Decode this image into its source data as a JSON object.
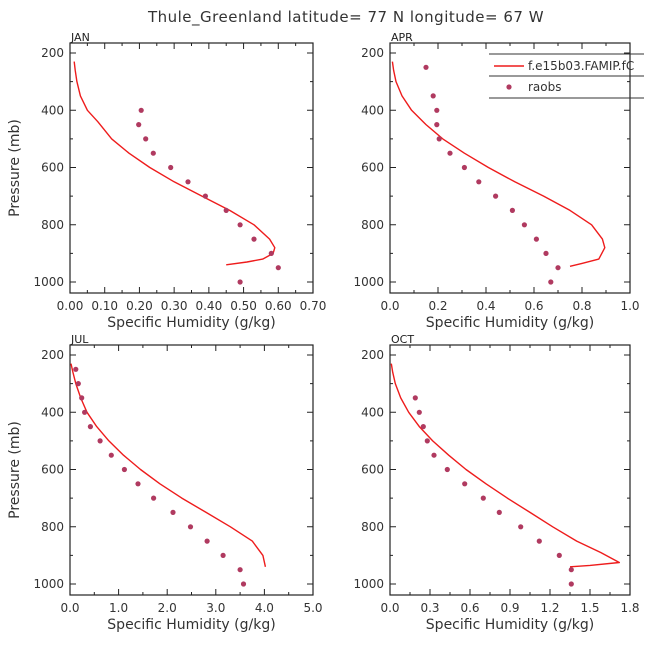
{
  "figure": {
    "title": "Thule_Greenland   latitude= 77 N longitude= 67 W"
  },
  "legend": {
    "model_label": "f.e15b03.FAMIP.fC",
    "obs_label": "raobs",
    "model_color": "#ee1c1c",
    "obs_color": "#b03a60"
  },
  "chart_data": [
    {
      "type": "line",
      "title": "JAN",
      "xlabel": "Specific Humidity (g/kg)",
      "ylabel": "Pressure (mb)",
      "xlim": [
        0.0,
        0.7
      ],
      "ylim": [
        1025,
        200
      ],
      "xticks": [
        "0.00",
        "0.10",
        "0.20",
        "0.30",
        "0.40",
        "0.50",
        "0.60",
        "0.70"
      ],
      "yticks": [
        "200",
        "400",
        "600",
        "800",
        "1000"
      ],
      "series": [
        {
          "x": [
            0.012,
            0.015,
            0.02,
            0.03,
            0.05,
            0.08,
            0.12,
            0.17,
            0.23,
            0.3,
            0.38,
            0.46,
            0.53,
            0.575,
            0.59,
            0.585,
            0.555,
            0.51,
            0.45
          ],
          "y": [
            230,
            260,
            300,
            350,
            400,
            440,
            500,
            550,
            600,
            650,
            700,
            750,
            800,
            850,
            880,
            900,
            920,
            930,
            940
          ]
        },
        {
          "x": [
            0.205,
            0.198,
            0.218,
            0.24,
            0.29,
            0.34,
            0.39,
            0.45,
            0.49,
            0.53,
            0.58,
            0.6,
            0.49
          ],
          "y": [
            400,
            450,
            500,
            550,
            600,
            650,
            700,
            750,
            800,
            850,
            900,
            950,
            1000
          ]
        }
      ]
    },
    {
      "type": "line",
      "title": "APR",
      "xlabel": "Specific Humidity (g/kg)",
      "ylabel": "Pressure (mb)",
      "xlim": [
        0.0,
        1.0
      ],
      "ylim": [
        1025,
        200
      ],
      "xticks": [
        "0.0",
        "0.2",
        "0.4",
        "0.6",
        "0.8",
        "1.0"
      ],
      "yticks": [
        "200",
        "400",
        "600",
        "800",
        "1000"
      ],
      "series": [
        {
          "x": [
            0.01,
            0.015,
            0.025,
            0.05,
            0.09,
            0.15,
            0.22,
            0.31,
            0.41,
            0.52,
            0.64,
            0.75,
            0.84,
            0.885,
            0.895,
            0.87,
            0.8,
            0.75
          ],
          "y": [
            230,
            260,
            300,
            350,
            400,
            450,
            500,
            550,
            600,
            650,
            700,
            750,
            800,
            850,
            880,
            920,
            935,
            945
          ]
        },
        {
          "x": [
            0.15,
            0.18,
            0.195,
            0.195,
            0.205,
            0.25,
            0.31,
            0.37,
            0.44,
            0.51,
            0.56,
            0.61,
            0.65,
            0.7,
            0.67
          ],
          "y": [
            250,
            350,
            400,
            450,
            500,
            550,
            600,
            650,
            700,
            750,
            800,
            850,
            900,
            950,
            1000
          ]
        }
      ]
    },
    {
      "type": "line",
      "title": "JUL",
      "xlabel": "Specific Humidity (g/kg)",
      "ylabel": "Pressure (mb)",
      "xlim": [
        0.0,
        5.0
      ],
      "ylim": [
        1025,
        200
      ],
      "xticks": [
        "0.0",
        "1.0",
        "2.0",
        "3.0",
        "4.0",
        "5.0"
      ],
      "yticks": [
        "200",
        "400",
        "600",
        "800",
        "1000"
      ],
      "series": [
        {
          "x": [
            0.02,
            0.06,
            0.12,
            0.22,
            0.35,
            0.55,
            0.8,
            1.1,
            1.45,
            1.85,
            2.3,
            2.8,
            3.3,
            3.75,
            3.97,
            4.02
          ],
          "y": [
            230,
            260,
            300,
            350,
            400,
            450,
            500,
            550,
            600,
            650,
            700,
            750,
            800,
            850,
            900,
            940
          ]
        },
        {
          "x": [
            0.12,
            0.17,
            0.24,
            0.3,
            0.42,
            0.62,
            0.85,
            1.12,
            1.4,
            1.72,
            2.12,
            2.48,
            2.82,
            3.15,
            3.5,
            3.57
          ],
          "y": [
            250,
            300,
            350,
            400,
            450,
            500,
            550,
            600,
            650,
            700,
            750,
            800,
            850,
            900,
            950,
            1000
          ]
        }
      ]
    },
    {
      "type": "line",
      "title": "OCT",
      "xlabel": "Specific Humidity (g/kg)",
      "ylabel": "Pressure (mb)",
      "xlim": [
        0.0,
        1.8
      ],
      "ylim": [
        1025,
        200
      ],
      "xticks": [
        "0.0",
        "0.3",
        "0.6",
        "0.9",
        "1.2",
        "1.5",
        "1.8"
      ],
      "yticks": [
        "200",
        "400",
        "600",
        "800",
        "1000"
      ],
      "series": [
        {
          "x": [
            0.01,
            0.02,
            0.04,
            0.08,
            0.14,
            0.22,
            0.32,
            0.44,
            0.57,
            0.72,
            0.88,
            1.05,
            1.22,
            1.4,
            1.58,
            1.72,
            1.5,
            1.35
          ],
          "y": [
            230,
            260,
            300,
            350,
            400,
            450,
            500,
            550,
            600,
            650,
            700,
            750,
            800,
            850,
            890,
            925,
            935,
            940
          ]
        },
        {
          "x": [
            0.19,
            0.22,
            0.25,
            0.28,
            0.33,
            0.43,
            0.56,
            0.7,
            0.82,
            0.98,
            1.12,
            1.27,
            1.36,
            1.36
          ],
          "y": [
            350,
            400,
            450,
            500,
            550,
            600,
            650,
            700,
            750,
            800,
            850,
            900,
            950,
            1000
          ]
        }
      ]
    }
  ]
}
